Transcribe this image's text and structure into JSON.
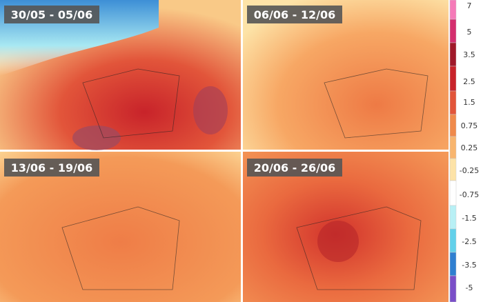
{
  "panels": [
    {
      "label": "30/05 - 05/06"
    },
    {
      "label": "06/06 - 12/06"
    },
    {
      "label": "13/06 - 19/06"
    },
    {
      "label": "20/06 - 26/06"
    }
  ],
  "legend": {
    "labels": [
      "7",
      "5",
      "3.5",
      "2.5",
      "1.5",
      "0.75",
      "0.25",
      "-0.25",
      "-0.75",
      "-1.5",
      "-2.5",
      "-3.5",
      "-5"
    ]
  }
}
